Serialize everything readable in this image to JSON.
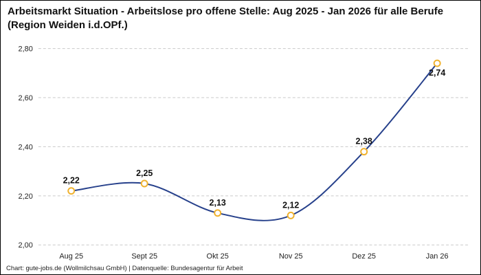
{
  "header": {
    "title": "Arbeitsmarkt Situation - Arbeitslose pro offene Stelle: Aug 2025 - Jan 2026 für alle Berufe (Region Weiden i.d.OPf.)"
  },
  "footer": {
    "source": "Chart: gute-jobs.de (Wollmilchsau GmbH) | Datenquelle: Bundesagentur für Arbeit"
  },
  "chart_data": {
    "type": "line",
    "title": "Arbeitsmarkt Situation - Arbeitslose pro offene Stelle: Aug 2025 - Jan 2026 für alle Berufe (Region Weiden i.d.OPf.)",
    "categories": [
      "Aug 25",
      "Sept 25",
      "Okt 25",
      "Nov 25",
      "Dez 25",
      "Jan 26"
    ],
    "values": [
      2.22,
      2.25,
      2.13,
      2.12,
      2.38,
      2.74
    ],
    "value_labels": [
      "2,22",
      "2,25",
      "2,13",
      "2,12",
      "2,38",
      "2,74"
    ],
    "label_positions": [
      "above",
      "above",
      "above",
      "above",
      "above",
      "below"
    ],
    "xlabel": "",
    "ylabel": "",
    "ylim": [
      2.0,
      2.8
    ],
    "ytick_values": [
      2.0,
      2.2,
      2.4,
      2.6,
      2.8
    ],
    "ytick_labels": [
      "2,00",
      "2,20",
      "2,40",
      "2,60",
      "2,80"
    ],
    "grid": "horizontal-dashed",
    "legend": "none",
    "colors": {
      "line": "#26408b",
      "marker_fill": "#ffffff",
      "marker_stroke": "#f0b22e",
      "gridline": "#c9c9c9",
      "tick_text": "#222222",
      "data_label_text": "#111111"
    }
  }
}
